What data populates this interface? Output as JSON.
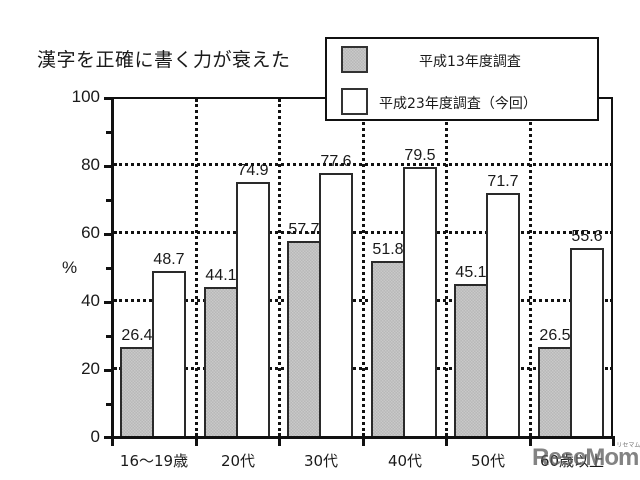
{
  "title": "漢字を正確に書く力が衰えた",
  "legend": {
    "old_label": "平成13年度調査",
    "new_label": "平成23年度調査（今回）"
  },
  "y_axis": {
    "unit": "%",
    "ticks": [
      "0",
      "20",
      "40",
      "60",
      "80",
      "100"
    ]
  },
  "categories": [
    "16〜19歳",
    "20代",
    "30代",
    "40代",
    "50代",
    "60歳以上"
  ],
  "values_old": [
    "26.4",
    "44.1",
    "57.7",
    "51.8",
    "45.1",
    "26.5"
  ],
  "values_new": [
    "48.7",
    "74.9",
    "77.6",
    "79.5",
    "71.7",
    "55.6"
  ],
  "watermark": "ReseMom",
  "watermark_sub": "リセマム",
  "colors": {
    "old_fill": "#c9c9c9",
    "new_fill": "#ffffff",
    "axis": "#111111"
  },
  "chart_data": {
    "type": "bar",
    "title": "漢字を正確に書く力が衰えた",
    "categories": [
      "16〜19歳",
      "20代",
      "30代",
      "40代",
      "50代",
      "60歳以上"
    ],
    "series": [
      {
        "name": "平成13年度調査",
        "values": [
          26.4,
          44.1,
          57.7,
          51.8,
          45.1,
          26.5
        ]
      },
      {
        "name": "平成23年度調査（今回）",
        "values": [
          48.7,
          74.9,
          77.6,
          79.5,
          71.7,
          55.6
        ]
      }
    ],
    "xlabel": "",
    "ylabel": "%",
    "ylim": [
      0,
      100
    ],
    "yticks": [
      0,
      20,
      40,
      60,
      80,
      100
    ],
    "grid": "dotted, horizontal at 20/40/60/80 and vertical category separators",
    "legend_position": "top-right, overlapping title"
  }
}
